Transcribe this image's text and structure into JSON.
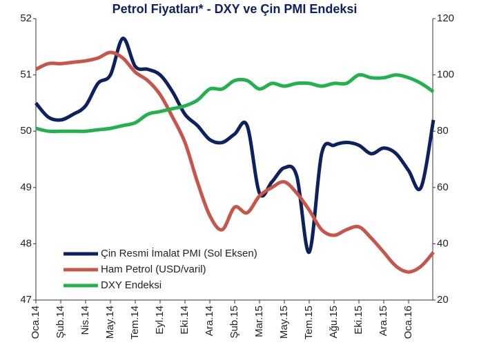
{
  "chart_data": {
    "type": "line",
    "title": "Petrol Fiyatları* - DXY ve Çin PMI Endeksi",
    "categories": [
      "Oca.14",
      null,
      "Şub.14",
      null,
      "Nis.14",
      null,
      "May.14",
      null,
      "Tem.14",
      null,
      "Eyl.14",
      null,
      "Eki.14",
      null,
      "Ara.14",
      null,
      "Şub.15",
      null,
      "Mar.15",
      null,
      "May.15",
      null,
      "Tem.15",
      null,
      "Ağu.15",
      null,
      "Eki.15",
      null,
      "Ara.15",
      null,
      "Oca.16",
      null,
      null
    ],
    "ylim": [
      47,
      52
    ],
    "yticks": [
      47,
      48,
      49,
      50,
      51,
      52
    ],
    "y2lim": [
      20,
      120
    ],
    "y2ticks": [
      20,
      40,
      60,
      80,
      100,
      120
    ],
    "legend": "lower left",
    "grid": false,
    "series": [
      {
        "name": "Çin Resmi İmalat PMI (Sol Eksen)",
        "color": "#0d2060",
        "values": [
          50.5,
          50.25,
          50.2,
          50.3,
          50.45,
          50.85,
          51.0,
          51.65,
          51.15,
          51.1,
          51.0,
          50.7,
          50.3,
          50.1,
          49.85,
          49.8,
          49.95,
          50.1,
          48.9,
          49.1,
          49.35,
          49.2,
          47.85,
          49.6,
          49.75,
          49.8,
          49.75,
          49.6,
          49.7,
          49.6,
          49.3,
          49.0,
          50.2
        ]
      },
      {
        "name": "Ham Petrol (USD/varil)",
        "color": "#c8554a",
        "axis": "y2",
        "values": [
          102,
          104,
          104,
          104.5,
          105,
          106,
          108,
          106,
          101,
          98,
          93,
          85,
          76,
          62,
          50,
          45,
          53,
          51,
          57,
          60,
          62,
          58,
          52,
          45,
          43,
          45,
          46,
          42,
          37,
          32,
          30,
          32,
          37
        ]
      },
      {
        "name": "DXY Endeksi",
        "color": "#22b14c",
        "axis": "y2",
        "values": [
          81,
          80,
          80,
          80,
          80,
          80.5,
          81,
          82,
          83,
          86,
          87,
          88,
          89,
          91,
          95,
          95,
          98,
          98,
          95,
          97,
          96,
          97,
          97,
          96,
          97,
          97,
          100,
          99,
          99,
          100,
          99,
          97,
          94
        ]
      }
    ]
  }
}
